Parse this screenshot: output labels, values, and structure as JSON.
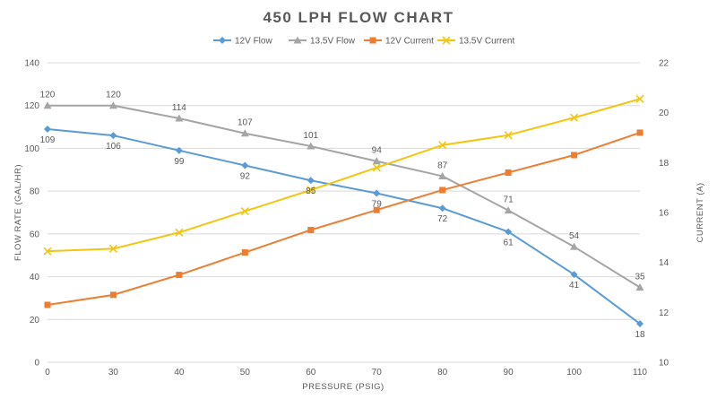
{
  "chart_data": {
    "type": "line",
    "title": "450 LPH FLOW CHART",
    "xlabel": "PRESSURE (PSIG)",
    "ylabel": "FLOW RATE (GAL/HR)",
    "y2label": "CURRENT (A)",
    "x": [
      0,
      30,
      40,
      50,
      60,
      70,
      80,
      90,
      100,
      110
    ],
    "x_ticks": [
      "0",
      "30",
      "40",
      "50",
      "60",
      "70",
      "80",
      "90",
      "100",
      "110"
    ],
    "ylim": [
      0,
      140
    ],
    "y_ticks": [
      0,
      20,
      40,
      60,
      80,
      100,
      120,
      140
    ],
    "y2lim": [
      10,
      22
    ],
    "y2_ticks": [
      10,
      12,
      14,
      16,
      18,
      20,
      22
    ],
    "grid": "horizontal",
    "legend_position": "top",
    "series": [
      {
        "name": "12V Flow",
        "axis": "left",
        "color": "#5b9bd5",
        "marker": "diamond",
        "values": [
          109,
          106,
          99,
          92,
          85,
          79,
          72,
          61,
          41,
          18
        ],
        "labels": [
          "109",
          "106",
          "99",
          "92",
          "85",
          "79",
          "72",
          "61",
          "41",
          "18"
        ],
        "label_pos": "below"
      },
      {
        "name": "13.5V Flow",
        "axis": "left",
        "color": "#a5a5a5",
        "marker": "triangle",
        "values": [
          120,
          120,
          114,
          107,
          101,
          94,
          87,
          71,
          54,
          35
        ],
        "labels": [
          "120",
          "120",
          "114",
          "107",
          "101",
          "94",
          "87",
          "71",
          "54",
          "35"
        ],
        "label_pos": "above"
      },
      {
        "name": "12V Current",
        "axis": "right",
        "color": "#ed7d31",
        "marker": "square",
        "values": [
          12.3,
          12.7,
          13.5,
          14.4,
          15.3,
          16.1,
          16.9,
          17.6,
          18.3,
          19.2
        ]
      },
      {
        "name": "13.5V Current",
        "axis": "right",
        "color": "#f2c511",
        "marker": "x",
        "values": [
          14.45,
          14.55,
          15.2,
          16.05,
          16.9,
          17.8,
          18.7,
          19.1,
          19.8,
          20.55
        ]
      }
    ]
  }
}
